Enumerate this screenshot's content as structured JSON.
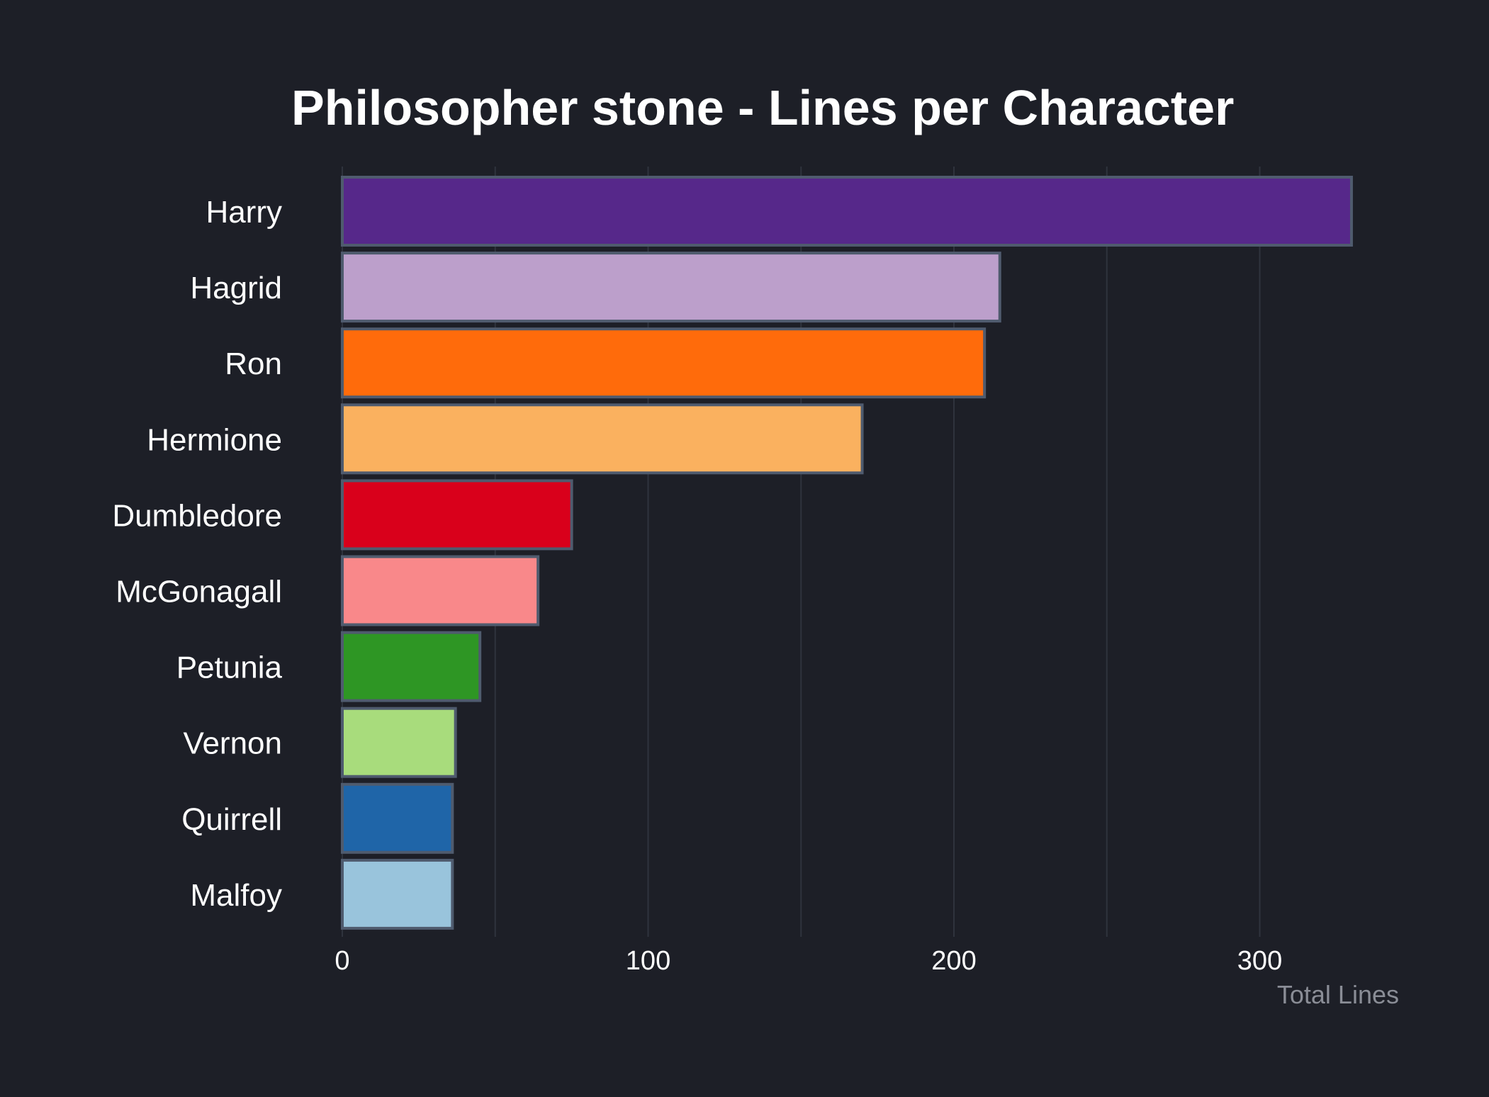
{
  "chart_data": {
    "type": "bar",
    "orientation": "horizontal",
    "title": "Philosopher stone - Lines per Character",
    "xlabel": "Total Lines",
    "ylabel": "",
    "xlim": [
      0,
      340
    ],
    "xticks": [
      0,
      100,
      200,
      300
    ],
    "grid": true,
    "legend": "none",
    "categories": [
      "Harry",
      "Hagrid",
      "Ron",
      "Hermione",
      "Dumbledore",
      "McGonagall",
      "Petunia",
      "Vernon",
      "Quirrell",
      "Malfoy"
    ],
    "values": [
      330,
      215,
      210,
      170,
      75,
      64,
      45,
      37,
      36,
      36
    ],
    "colors": [
      "#56288a",
      "#bc9fcb",
      "#ff6b0b",
      "#fab15f",
      "#d9001b",
      "#f9888a",
      "#2e9624",
      "#a8dc7c",
      "#1f65a8",
      "#99c4dc"
    ],
    "bar_edge_color": "#4f5b6e",
    "background_color": "#1d1f27",
    "grid_color": "#2f333d"
  }
}
